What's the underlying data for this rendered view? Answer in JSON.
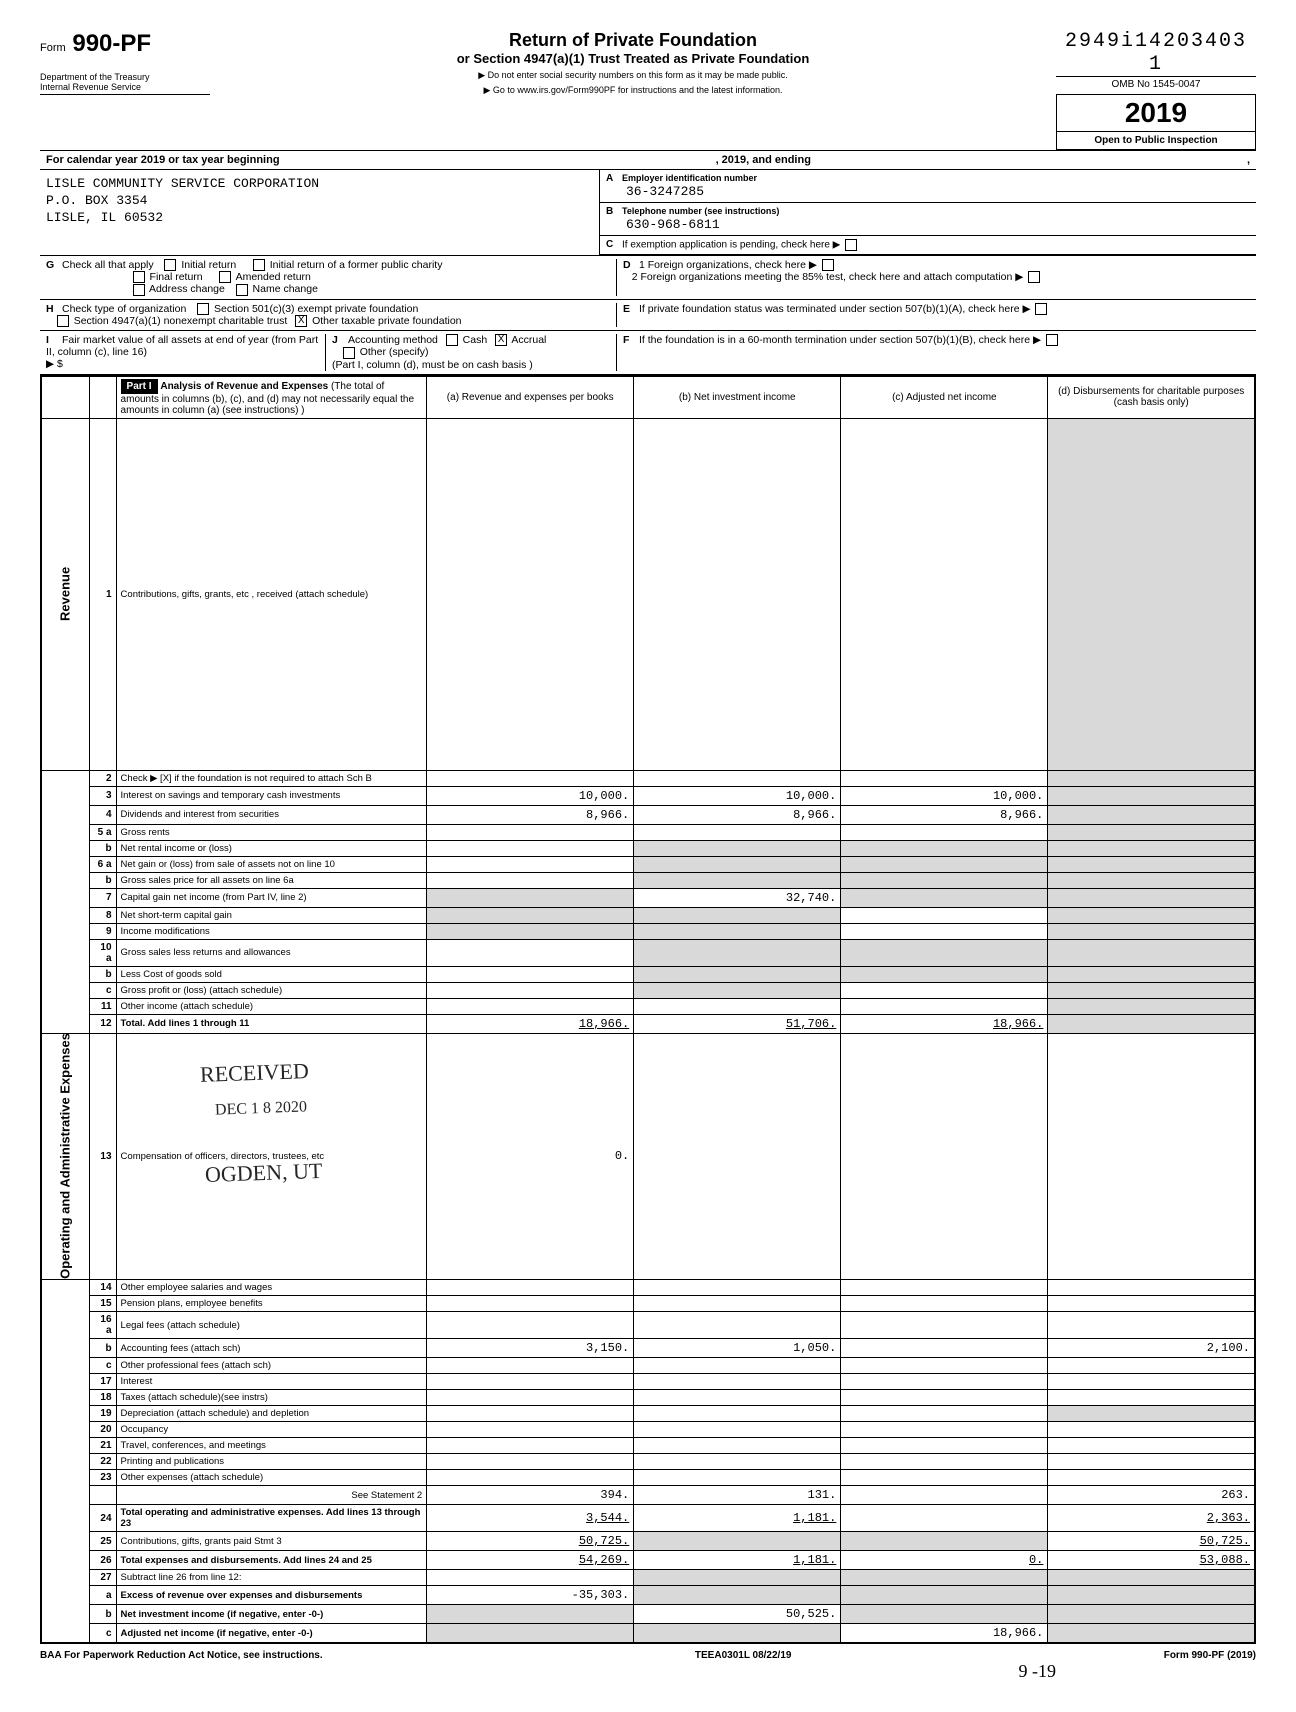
{
  "dln": "2949i14203403  1",
  "omb": "OMB No 1545-0047",
  "form_number_prefix": "Form",
  "form_number": "990-PF",
  "tax_year": "2019",
  "open_insp": "Open to Public Inspection",
  "dept_line1": "Department of the Treasury",
  "dept_line2": "Internal Revenue Service",
  "title1": "Return of Private Foundation",
  "title2": "or Section 4947(a)(1) Trust Treated as Private Foundation",
  "title3a": "▶ Do not enter social security numbers on this form as it may be made public.",
  "title3b": "▶ Go to www.irs.gov/Form990PF for instructions and the latest information.",
  "cal_line_a": "For calendar year 2019 or tax year beginning",
  "cal_line_mid": ", 2019, and ending",
  "cal_line_b": ",",
  "org": {
    "name": "LISLE COMMUNITY SERVICE CORPORATION",
    "addr1": "P.O. BOX 3354",
    "addr2": "LISLE, IL 60532"
  },
  "ein_block": {
    "A_label": "Employer identification number",
    "A_val": "36-3247285",
    "B_label": "Telephone number (see instructions)",
    "B_val": "630-968-6811",
    "C_label": "If exemption application is pending, check here",
    "D1_label": "1 Foreign organizations, check here",
    "D2_label": "2 Foreign organizations meeting the 85% test, check here and attach computation",
    "E_label": "If private foundation status was terminated under section 507(b)(1)(A), check here",
    "F_label": "If the foundation is in a 60-month termination under section 507(b)(1)(B), check here"
  },
  "G": {
    "label": "Check all that apply",
    "opts": [
      "Initial return",
      "Final return",
      "Address change",
      "Initial return of a former public charity",
      "Amended return",
      "Name change"
    ]
  },
  "H": {
    "label": "Check type of organization",
    "opts": [
      "Section 501(c)(3) exempt private foundation",
      "Section 4947(a)(1) nonexempt charitable trust",
      "Other taxable private foundation"
    ],
    "checked": 2
  },
  "I": {
    "label": "Fair market value of all assets at end of year (from Part II, column (c), line 16)",
    "prefix": "▶ $"
  },
  "J": {
    "label": "Accounting method",
    "opts": [
      "Cash",
      "Accrual",
      "Other (specify)"
    ],
    "checked": 1,
    "note": "(Part I, column (d), must be on cash basis )"
  },
  "part1": {
    "header": "Part I",
    "title": "Analysis of Revenue and Expenses",
    "subtitle": "(The total of amounts in columns (b), (c), and (d) may not necessarily equal the amounts in column (a) (see instructions) )",
    "col_labels": {
      "a": "(a) Revenue and expenses per books",
      "b": "(b) Net investment income",
      "c": "(c) Adjusted net income",
      "d": "(d) Disbursements for charitable purposes (cash basis only)"
    },
    "side_rev": "Revenue",
    "side_oae": "Operating and Administrative Expenses"
  },
  "rows": [
    {
      "n": "1",
      "desc": "Contributions, gifts, grants, etc , received (attach schedule)",
      "a": "",
      "b": "",
      "c": "",
      "d": "",
      "dshade": true
    },
    {
      "n": "2",
      "desc": "Check ▶  [X] if the foundation is not required to attach Sch B",
      "a": "",
      "b": "",
      "c": "",
      "d": "",
      "dshade": true
    },
    {
      "n": "3",
      "desc": "Interest on savings and temporary cash investments",
      "a": "10,000.",
      "b": "10,000.",
      "c": "10,000.",
      "d": "",
      "dshade": true
    },
    {
      "n": "4",
      "desc": "Dividends and interest from securities",
      "a": "8,966.",
      "b": "8,966.",
      "c": "8,966.",
      "d": "",
      "dshade": true
    },
    {
      "n": "5 a",
      "desc": "Gross rents",
      "a": "",
      "b": "",
      "c": "",
      "d": "",
      "dshade": true
    },
    {
      "n": "b",
      "desc": "Net rental income or (loss)",
      "a": "",
      "b": "",
      "c": "",
      "d": "",
      "bshade": true,
      "cshade": true,
      "dshade": true
    },
    {
      "n": "6 a",
      "desc": "Net gain or (loss) from sale of assets not on line 10",
      "a": "",
      "b": "",
      "c": "",
      "d": "",
      "bshade": true,
      "cshade": true,
      "dshade": true
    },
    {
      "n": "b",
      "desc": "Gross sales price for all assets on line 6a",
      "a": "",
      "b": "",
      "c": "",
      "d": "",
      "bshade": true,
      "cshade": true,
      "dshade": true
    },
    {
      "n": "7",
      "desc": "Capital gain net income (from Part IV, line 2)",
      "a": "",
      "b": "32,740.",
      "c": "",
      "d": "",
      "ashade": true,
      "cshade": true,
      "dshade": true
    },
    {
      "n": "8",
      "desc": "Net short-term capital gain",
      "a": "",
      "b": "",
      "c": "",
      "d": "",
      "ashade": true,
      "bshade": true,
      "dshade": true
    },
    {
      "n": "9",
      "desc": "Income modifications",
      "a": "",
      "b": "",
      "c": "",
      "d": "",
      "ashade": true,
      "bshade": true,
      "dshade": true
    },
    {
      "n": "10 a",
      "desc": "Gross sales less returns and allowances",
      "a": "",
      "b": "",
      "c": "",
      "d": "",
      "bshade": true,
      "cshade": true,
      "dshade": true
    },
    {
      "n": "b",
      "desc": "Less  Cost of goods sold",
      "a": "",
      "b": "",
      "c": "",
      "d": "",
      "bshade": true,
      "cshade": true,
      "dshade": true
    },
    {
      "n": "c",
      "desc": "Gross profit or (loss) (attach schedule)",
      "a": "",
      "b": "",
      "c": "",
      "d": "",
      "bshade": true,
      "dshade": true
    },
    {
      "n": "11",
      "desc": "Other income (attach schedule)",
      "a": "",
      "b": "",
      "c": "",
      "d": "",
      "dshade": true
    },
    {
      "n": "12",
      "desc": "Total. Add lines 1 through 11",
      "a": "18,966.",
      "b": "51,706.",
      "c": "18,966.",
      "d": "",
      "dshade": true,
      "bold": true,
      "ul": true
    },
    {
      "n": "13",
      "desc": "Compensation of officers, directors, trustees, etc",
      "a": "0.",
      "b": "",
      "c": "",
      "d": ""
    },
    {
      "n": "14",
      "desc": "Other employee salaries and wages",
      "a": "",
      "b": "",
      "c": "",
      "d": ""
    },
    {
      "n": "15",
      "desc": "Pension plans, employee benefits",
      "a": "",
      "b": "",
      "c": "",
      "d": ""
    },
    {
      "n": "16 a",
      "desc": "Legal fees (attach schedule)",
      "a": "",
      "b": "",
      "c": "",
      "d": ""
    },
    {
      "n": "b",
      "desc": "Accounting fees (attach sch)",
      "a": "3,150.",
      "b": "1,050.",
      "c": "",
      "d": "2,100."
    },
    {
      "n": "c",
      "desc": "Other professional fees (attach sch)",
      "a": "",
      "b": "",
      "c": "",
      "d": ""
    },
    {
      "n": "17",
      "desc": "Interest",
      "a": "",
      "b": "",
      "c": "",
      "d": ""
    },
    {
      "n": "18",
      "desc": "Taxes (attach schedule)(see instrs)",
      "a": "",
      "b": "",
      "c": "",
      "d": ""
    },
    {
      "n": "19",
      "desc": "Depreciation (attach schedule) and depletion",
      "a": "",
      "b": "",
      "c": "",
      "d": "",
      "dshade": true
    },
    {
      "n": "20",
      "desc": "Occupancy",
      "a": "",
      "b": "",
      "c": "",
      "d": ""
    },
    {
      "n": "21",
      "desc": "Travel, conferences, and meetings",
      "a": "",
      "b": "",
      "c": "",
      "d": ""
    },
    {
      "n": "22",
      "desc": "Printing and publications",
      "a": "",
      "b": "",
      "c": "",
      "d": ""
    },
    {
      "n": "23",
      "desc": "Other expenses (attach schedule)",
      "a": "",
      "b": "",
      "c": "",
      "d": ""
    },
    {
      "n": "",
      "desc": "See Statement 2",
      "a": "394.",
      "b": "131.",
      "c": "",
      "d": "263.",
      "desc_right": true
    },
    {
      "n": "24",
      "desc": "Total operating and administrative expenses. Add lines 13 through 23",
      "a": "3,544.",
      "b": "1,181.",
      "c": "",
      "d": "2,363.",
      "bold": true,
      "ul": true
    },
    {
      "n": "25",
      "desc": "Contributions, gifts, grants paid           Stmt 3",
      "a": "50,725.",
      "b": "",
      "c": "",
      "d": "50,725.",
      "bshade": true,
      "cshade": true,
      "ul": true
    },
    {
      "n": "26",
      "desc": "Total expenses and disbursements. Add lines 24 and 25",
      "a": "54,269.",
      "b": "1,181.",
      "c": "0.",
      "d": "53,088.",
      "bold": true,
      "ul": true
    },
    {
      "n": "27",
      "desc": "Subtract line 26 from line 12:",
      "a": "",
      "b": "",
      "c": "",
      "d": "",
      "bshade": true,
      "cshade": true,
      "dshade": true
    },
    {
      "n": "a",
      "desc": "Excess of revenue over expenses and disbursements",
      "a": "-35,303.",
      "b": "",
      "c": "",
      "d": "",
      "bold": true,
      "bshade": true,
      "cshade": true,
      "dshade": true
    },
    {
      "n": "b",
      "desc": "Net investment income (if negative, enter -0-)",
      "a": "",
      "b": "50,525.",
      "c": "",
      "d": "",
      "bold": true,
      "ashade": true,
      "cshade": true,
      "dshade": true
    },
    {
      "n": "c",
      "desc": "Adjusted net income (if negative, enter -0-)",
      "a": "",
      "b": "",
      "c": "18,966.",
      "d": "",
      "bold": true,
      "ashade": true,
      "bshade": true,
      "dshade": true
    }
  ],
  "footer": {
    "left": "BAA  For Paperwork Reduction Act Notice, see instructions.",
    "mid": "TEEA0301L  08/22/19",
    "right": "Form 990-PF (2019)"
  },
  "stamps": {
    "received": "RECEIVED",
    "date": "DEC 1 8 2020",
    "ogden": "OGDEN, UT"
  },
  "hand_note": "9 -19"
}
